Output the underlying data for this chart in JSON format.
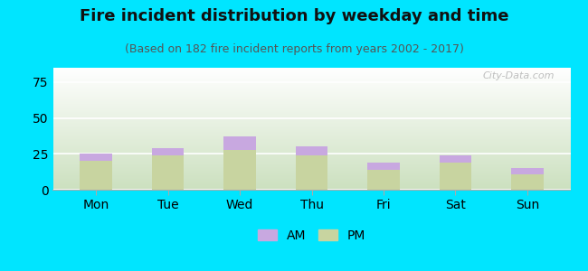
{
  "title": "Fire incident distribution by weekday and time",
  "subtitle": "(Based on 182 fire incident reports from years 2002 - 2017)",
  "days": [
    "Mon",
    "Tue",
    "Wed",
    "Thu",
    "Fri",
    "Sat",
    "Sun"
  ],
  "pm_values": [
    20,
    24,
    28,
    24,
    14,
    19,
    11
  ],
  "am_values": [
    5,
    5,
    9,
    6,
    5,
    5,
    4
  ],
  "am_color": "#c8a8e0",
  "pm_color": "#c8d4a0",
  "background_outer": "#00e5ff",
  "ylim": [
    0,
    85
  ],
  "yticks": [
    0,
    25,
    50,
    75
  ],
  "bar_width": 0.45,
  "title_fontsize": 13,
  "subtitle_fontsize": 9,
  "tick_fontsize": 10,
  "legend_fontsize": 10,
  "watermark_text": "City-Data.com"
}
